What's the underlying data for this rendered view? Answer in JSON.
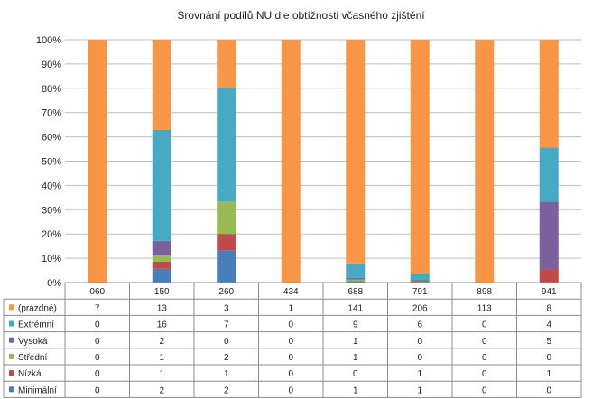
{
  "chart_data": {
    "type": "bar",
    "stacked": "percent",
    "title": "Srovnání podílů NU  dle obtížnosti včasného zjištění",
    "categories": [
      "060",
      "150",
      "260",
      "434",
      "688",
      "791",
      "898",
      "941"
    ],
    "yticks": [
      "0%",
      "10%",
      "20%",
      "30%",
      "40%",
      "50%",
      "60%",
      "70%",
      "80%",
      "90%",
      "100%"
    ],
    "ylim": [
      0,
      100
    ],
    "grid": true,
    "legend_placement": "data-table",
    "series": [
      {
        "name": "Minimální",
        "color": "#4a7ebb",
        "values": [
          0,
          2,
          2,
          0,
          1,
          1,
          0,
          0
        ]
      },
      {
        "name": "Nízká",
        "color": "#be4b48",
        "values": [
          0,
          1,
          1,
          0,
          0,
          1,
          0,
          1
        ]
      },
      {
        "name": "Střední",
        "color": "#98b954",
        "values": [
          0,
          1,
          2,
          0,
          1,
          0,
          0,
          0
        ]
      },
      {
        "name": "Vysoká",
        "color": "#7d60a0",
        "values": [
          0,
          2,
          0,
          0,
          1,
          0,
          0,
          5
        ]
      },
      {
        "name": "Extrémní",
        "color": "#46aac5",
        "values": [
          0,
          16,
          7,
          0,
          9,
          6,
          0,
          4
        ]
      },
      {
        "name": "(prázdné)",
        "color": "#f79646",
        "values": [
          7,
          13,
          3,
          1,
          141,
          206,
          113,
          8
        ]
      }
    ]
  }
}
